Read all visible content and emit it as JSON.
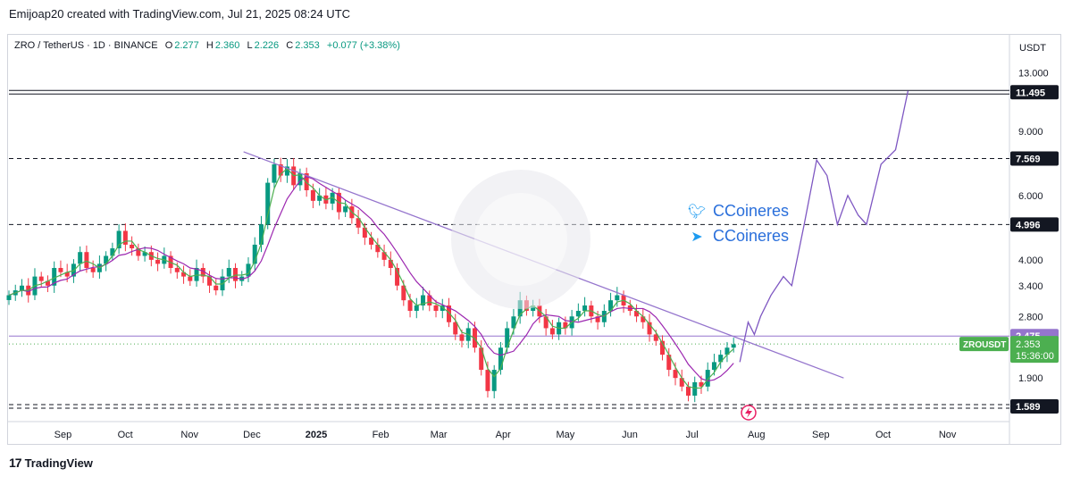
{
  "header": {
    "credit": "Emijoap20 created with TradingView.com, Jul 21, 2025 08:24 UTC"
  },
  "legend": {
    "symbol": "ZRO / TetherUS · 1D · BINANCE",
    "o_label": "O",
    "o": "2.277",
    "h_label": "H",
    "h": "2.360",
    "l_label": "L",
    "l": "2.226",
    "c_label": "C",
    "c": "2.353",
    "change": "+0.077 (+3.38%)"
  },
  "axis": {
    "currency": "USDT"
  },
  "social": {
    "twitter_handle": "CCoineres",
    "telegram_handle": "CCoineres"
  },
  "footer": {
    "brand": "TradingView"
  },
  "colors": {
    "up": "#089981",
    "down": "#f23645",
    "ma_fast": "#4caf50",
    "ma_slow": "#9c27b0",
    "trend": "#9575cd",
    "forecast": "#7e57c2",
    "price_tag": "#4caf50",
    "level_tag": "#9575cd"
  },
  "chart_data": {
    "type": "candlestick",
    "y_scale": "log",
    "y_ticks": [
      "13.000",
      "9.000",
      "6.000",
      "4.000",
      "3.400",
      "2.800",
      "1.900"
    ],
    "x_ticks": [
      "Sep",
      "Oct",
      "Nov",
      "Dec",
      "2025",
      "Feb",
      "Mar",
      "Apr",
      "May",
      "Jun",
      "Jul",
      "Aug",
      "Sep",
      "Oct",
      "Nov"
    ],
    "horizontal_levels": [
      {
        "value": 11.495,
        "label": "11.495",
        "style": "double-solid"
      },
      {
        "value": 7.569,
        "label": "7.569",
        "style": "dashed"
      },
      {
        "value": 4.996,
        "label": "4.996",
        "style": "dashed"
      },
      {
        "value": 2.475,
        "label": "2.475",
        "style": "solid-purple"
      },
      {
        "value": 1.589,
        "label": "1.589",
        "style": "double-dashed"
      }
    ],
    "current_price": {
      "symbol": "ZROUSDT",
      "value": "2.353",
      "countdown": "15:36:00"
    },
    "trendline": {
      "from": {
        "date": "2024-11-27",
        "value": 7.9
      },
      "to": {
        "date": "2025-09-12",
        "value": 1.9
      }
    },
    "closes": [
      3.2,
      3.3,
      3.4,
      3.2,
      3.6,
      3.5,
      3.4,
      3.8,
      3.7,
      3.6,
      3.9,
      4.2,
      3.8,
      3.7,
      3.9,
      4.1,
      4.3,
      4.8,
      4.4,
      4.3,
      4.1,
      4.2,
      4.0,
      3.9,
      4.1,
      3.8,
      3.7,
      3.6,
      3.5,
      3.8,
      3.6,
      3.4,
      3.3,
      3.6,
      3.8,
      3.5,
      3.6,
      3.9,
      4.4,
      5.0,
      6.5,
      7.3,
      6.8,
      7.2,
      6.4,
      6.9,
      6.2,
      5.8,
      6.0,
      5.7,
      6.1,
      5.4,
      5.6,
      5.2,
      4.9,
      4.6,
      4.4,
      4.2,
      4.0,
      3.8,
      3.4,
      3.1,
      2.9,
      3.0,
      3.2,
      3.0,
      2.9,
      3.0,
      2.7,
      2.5,
      2.4,
      2.6,
      2.3,
      2.0,
      1.75,
      2.0,
      2.3,
      2.6,
      2.8,
      3.1,
      2.9,
      3.0,
      2.8,
      2.6,
      2.5,
      2.7,
      2.6,
      2.8,
      2.9,
      3.0,
      2.8,
      2.7,
      2.9,
      3.1,
      3.2,
      3.0,
      2.9,
      2.8,
      2.7,
      2.5,
      2.4,
      2.2,
      2.0,
      1.9,
      1.8,
      1.7,
      1.85,
      1.8,
      2.0,
      2.1,
      2.2,
      2.3,
      2.35
    ],
    "forecast_path": [
      {
        "date": "2025-07-24",
        "value": 2.1
      },
      {
        "date": "2025-07-28",
        "value": 2.7
      },
      {
        "date": "2025-07-31",
        "value": 2.5
      },
      {
        "date": "2025-08-03",
        "value": 2.8
      },
      {
        "date": "2025-08-08",
        "value": 3.2
      },
      {
        "date": "2025-08-14",
        "value": 3.6
      },
      {
        "date": "2025-08-18",
        "value": 3.4
      },
      {
        "date": "2025-08-24",
        "value": 5.0
      },
      {
        "date": "2025-08-30",
        "value": 7.5
      },
      {
        "date": "2025-09-04",
        "value": 6.8
      },
      {
        "date": "2025-09-09",
        "value": 5.0
      },
      {
        "date": "2025-09-14",
        "value": 6.0
      },
      {
        "date": "2025-09-19",
        "value": 5.3
      },
      {
        "date": "2025-09-23",
        "value": 5.0
      },
      {
        "date": "2025-09-30",
        "value": 7.3
      },
      {
        "date": "2025-10-07",
        "value": 8.0
      },
      {
        "date": "2025-10-13",
        "value": 11.6
      }
    ]
  }
}
